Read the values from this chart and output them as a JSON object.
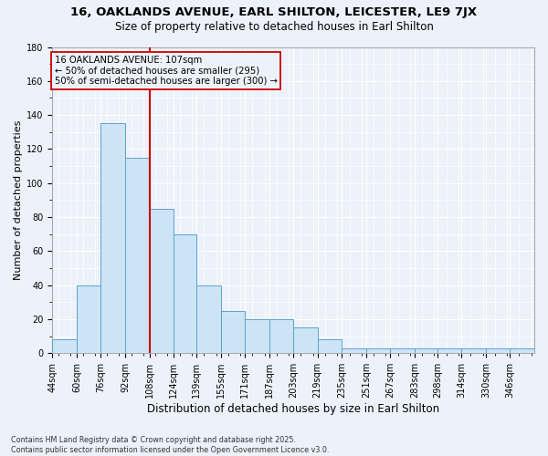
{
  "title": "16, OAKLANDS AVENUE, EARL SHILTON, LEICESTER, LE9 7JX",
  "subtitle": "Size of property relative to detached houses in Earl Shilton",
  "xlabel": "Distribution of detached houses by size in Earl Shilton",
  "ylabel": "Number of detached properties",
  "footer_line1": "Contains HM Land Registry data © Crown copyright and database right 2025.",
  "footer_line2": "Contains public sector information licensed under the Open Government Licence v3.0.",
  "bin_edges": [
    44,
    60,
    76,
    92,
    108,
    124,
    139,
    155,
    171,
    187,
    203,
    219,
    235,
    251,
    267,
    283,
    298,
    314,
    330,
    346,
    362
  ],
  "bin_counts": [
    8,
    40,
    135,
    115,
    85,
    70,
    40,
    25,
    20,
    20,
    15,
    8,
    3,
    3,
    3,
    3,
    3,
    3,
    3,
    3
  ],
  "bar_face_color": "#cce4f5",
  "bar_edge_color": "#5ba3d0",
  "vline_color": "#cc0000",
  "vline_x": 108,
  "background_color": "#edf2fa",
  "grid_color": "#ffffff",
  "ylim": [
    0,
    180
  ],
  "yticks": [
    0,
    20,
    40,
    60,
    80,
    100,
    120,
    140,
    160,
    180
  ],
  "title_fontsize": 9.5,
  "subtitle_fontsize": 8.5,
  "xlabel_fontsize": 8.5,
  "ylabel_fontsize": 8,
  "tick_fontsize": 7,
  "annotation_text_line1": "16 OAKLANDS AVENUE: 107sqm",
  "annotation_text_line2": "← 50% of detached houses are smaller (295)",
  "annotation_text_line3": "50% of semi-detached houses are larger (300) →"
}
